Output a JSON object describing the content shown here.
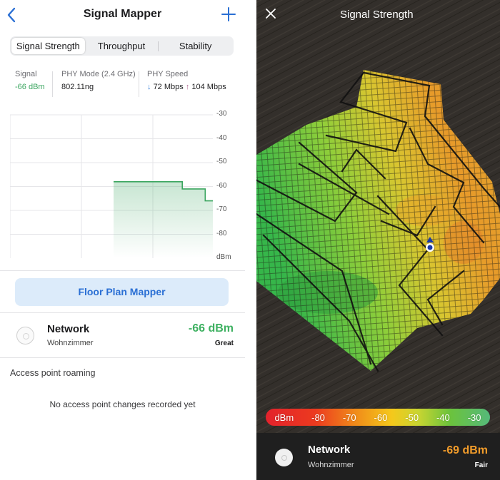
{
  "left": {
    "title": "Signal Mapper",
    "tabs": [
      "Signal Strength",
      "Throughput",
      "Stability"
    ],
    "active_tab": "Signal Strength",
    "stats": {
      "signal_label": "Signal",
      "signal_value": "-66 dBm",
      "phy_mode_label": "PHY Mode (2.4 GHz)",
      "phy_mode_value": "802.11ng",
      "phy_speed_label": "PHY Speed",
      "down_arrow": "↓",
      "down_value": "72 Mbps",
      "up_arrow": "↑",
      "up_value": "104 Mbps"
    },
    "floor_plan_button": "Floor Plan Mapper",
    "access_point": {
      "name": "Network",
      "location": "Wohnzimmer",
      "signal": "-66 dBm",
      "quality": "Great"
    },
    "roaming_label": "Access point roaming",
    "no_changes_text": "No access point changes recorded yet"
  },
  "chart_data": {
    "type": "area",
    "y_ticks": [
      "-30",
      "-40",
      "-50",
      "-60",
      "-70",
      "-80"
    ],
    "y_unit": "dBm",
    "ylim": [
      -90,
      -30
    ],
    "grid": true,
    "series": [
      {
        "color": "#3aa55f",
        "x": [
          0,
          1,
          2,
          3,
          4,
          5,
          6,
          7,
          8,
          9,
          10,
          11,
          12,
          13
        ],
        "values": [
          -58,
          -58,
          -58,
          -58,
          -58,
          -58,
          -58,
          -58,
          -58,
          -61,
          -61,
          -61,
          -66,
          -66
        ]
      }
    ]
  },
  "right": {
    "title": "Signal Strength",
    "legend": [
      "dBm",
      "-80",
      "-70",
      "-60",
      "-50",
      "-40",
      "-30"
    ],
    "access_point": {
      "name": "Network",
      "location": "Wohnzimmer",
      "signal": "-69 dBm",
      "quality": "Fair"
    }
  },
  "colors": {
    "accent": "#2a6fd4",
    "good": "#3fb162",
    "fair": "#f29c2a"
  }
}
